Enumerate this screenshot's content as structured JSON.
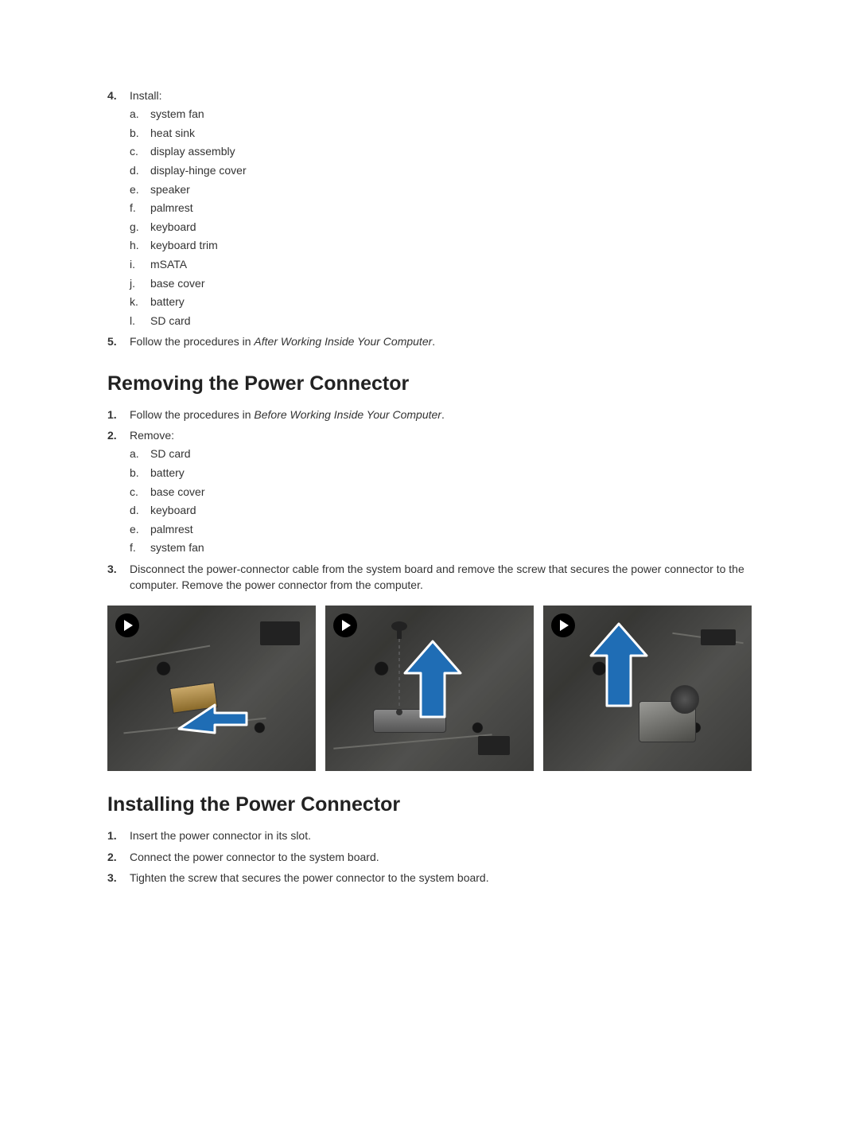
{
  "section1": {
    "step4_num": "4.",
    "step4_label": "Install:",
    "install_items": [
      {
        "l": "a.",
        "t": "system fan"
      },
      {
        "l": "b.",
        "t": "heat sink"
      },
      {
        "l": "c.",
        "t": "display assembly"
      },
      {
        "l": "d.",
        "t": "display-hinge cover"
      },
      {
        "l": "e.",
        "t": "speaker"
      },
      {
        "l": "f.",
        "t": "palmrest"
      },
      {
        "l": "g.",
        "t": "keyboard"
      },
      {
        "l": "h.",
        "t": "keyboard trim"
      },
      {
        "l": "i.",
        "t": "mSATA"
      },
      {
        "l": "j.",
        "t": "base cover"
      },
      {
        "l": "k.",
        "t": "battery"
      },
      {
        "l": "l.",
        "t": "SD card"
      }
    ],
    "step5_num": "5.",
    "step5_prefix": "Follow the procedures in ",
    "step5_italic": "After Working Inside Your Computer",
    "step5_suffix": "."
  },
  "removing": {
    "heading": "Removing the Power Connector",
    "step1_num": "1.",
    "step1_prefix": "Follow the procedures in ",
    "step1_italic": "Before Working Inside Your Computer",
    "step1_suffix": ".",
    "step2_num": "2.",
    "step2_label": "Remove:",
    "remove_items": [
      {
        "l": "a.",
        "t": "SD card"
      },
      {
        "l": "b.",
        "t": "battery"
      },
      {
        "l": "c.",
        "t": "base cover"
      },
      {
        "l": "d.",
        "t": "keyboard"
      },
      {
        "l": "e.",
        "t": "palmrest"
      },
      {
        "l": "f.",
        "t": "system fan"
      }
    ],
    "step3_num": "3.",
    "step3_text": "Disconnect the power-connector cable from the system board and remove the screw that secures the power connector to the computer. Remove the power connector from the computer."
  },
  "installing": {
    "heading": "Installing the Power Connector",
    "steps": [
      {
        "n": "1.",
        "t": "Insert the power connector in its slot."
      },
      {
        "n": "2.",
        "t": "Connect the power connector to the system board."
      },
      {
        "n": "3.",
        "t": "Tighten the screw that secures the power connector to the system board."
      }
    ]
  },
  "diagram": {
    "arrow_fill": "#1f6db5",
    "arrow_stroke": "#ffffff"
  }
}
